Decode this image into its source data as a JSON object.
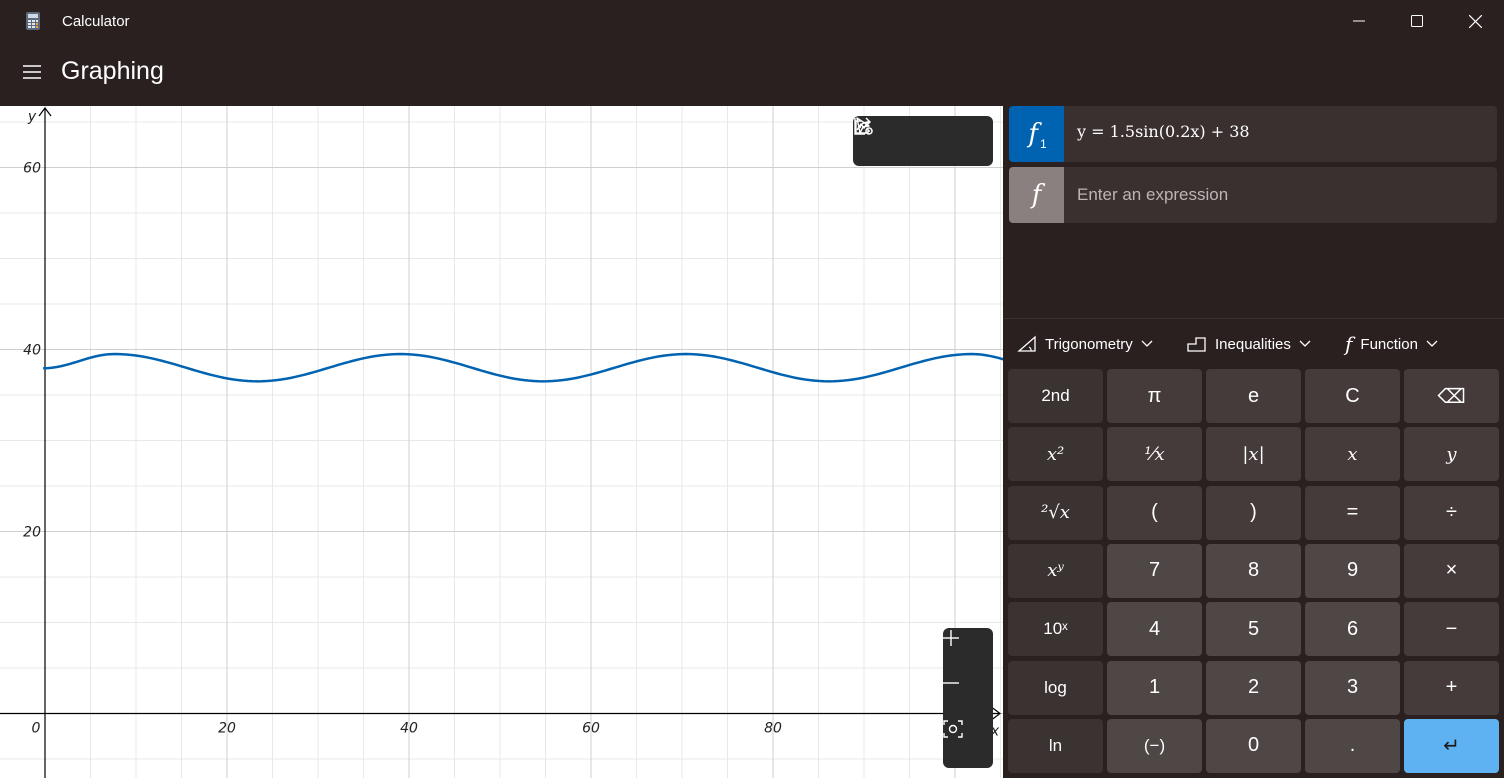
{
  "window": {
    "title": "Calculator",
    "minimize": "Minimize",
    "maximize": "Maximize",
    "close": "Close"
  },
  "header": {
    "mode": "Graphing"
  },
  "chart_data": {
    "type": "line",
    "xlabel": "x",
    "ylabel": "y",
    "xlim": [
      0,
      105
    ],
    "ylim": [
      -7,
      68
    ],
    "x_ticks": [
      "0",
      "20",
      "40",
      "60",
      "80"
    ],
    "y_ticks": [
      "20",
      "40",
      "60"
    ],
    "grid": true,
    "series": [
      {
        "name": "f1",
        "color": "#0063b1",
        "x": [
          -0.2,
          7.65,
          23.35,
          39.05,
          54.75,
          70.45,
          86.15,
          101.85,
          110
        ],
        "y": [
          37.94,
          39.5,
          36.5,
          39.5,
          36.5,
          39.5,
          36.5,
          39.5,
          38.0
        ]
      }
    ]
  },
  "toolbar": {
    "trace": "select-icon",
    "share": "share-icon",
    "settings": "graph-settings-icon"
  },
  "zoom": {
    "in": "+",
    "out": "−"
  },
  "functions": [
    {
      "badge": "f",
      "index": "1",
      "color": "#0063b1",
      "expression": "y = 1.5sin(0.2x) + 38"
    },
    {
      "badge": "f",
      "color": "#8a8080",
      "placeholder": "Enter an expression"
    }
  ],
  "categories": [
    {
      "label": "Trigonometry"
    },
    {
      "label": "Inequalities"
    },
    {
      "label": "Function"
    }
  ],
  "keys": {
    "row1": [
      "2nd",
      "π",
      "e",
      "C",
      "⌫"
    ],
    "row2": [
      "x²",
      "¹⁄x",
      "|x|",
      "x",
      "y"
    ],
    "row3": [
      "²√x",
      "(",
      ")",
      "=",
      "÷"
    ],
    "row4": [
      "xʸ",
      "7",
      "8",
      "9",
      "×"
    ],
    "row5": [
      "10ˣ",
      "4",
      "5",
      "6",
      "−"
    ],
    "row6": [
      "log",
      "1",
      "2",
      "3",
      "+"
    ],
    "row7": [
      "ln",
      "(−)",
      "0",
      ".",
      "↵"
    ]
  }
}
